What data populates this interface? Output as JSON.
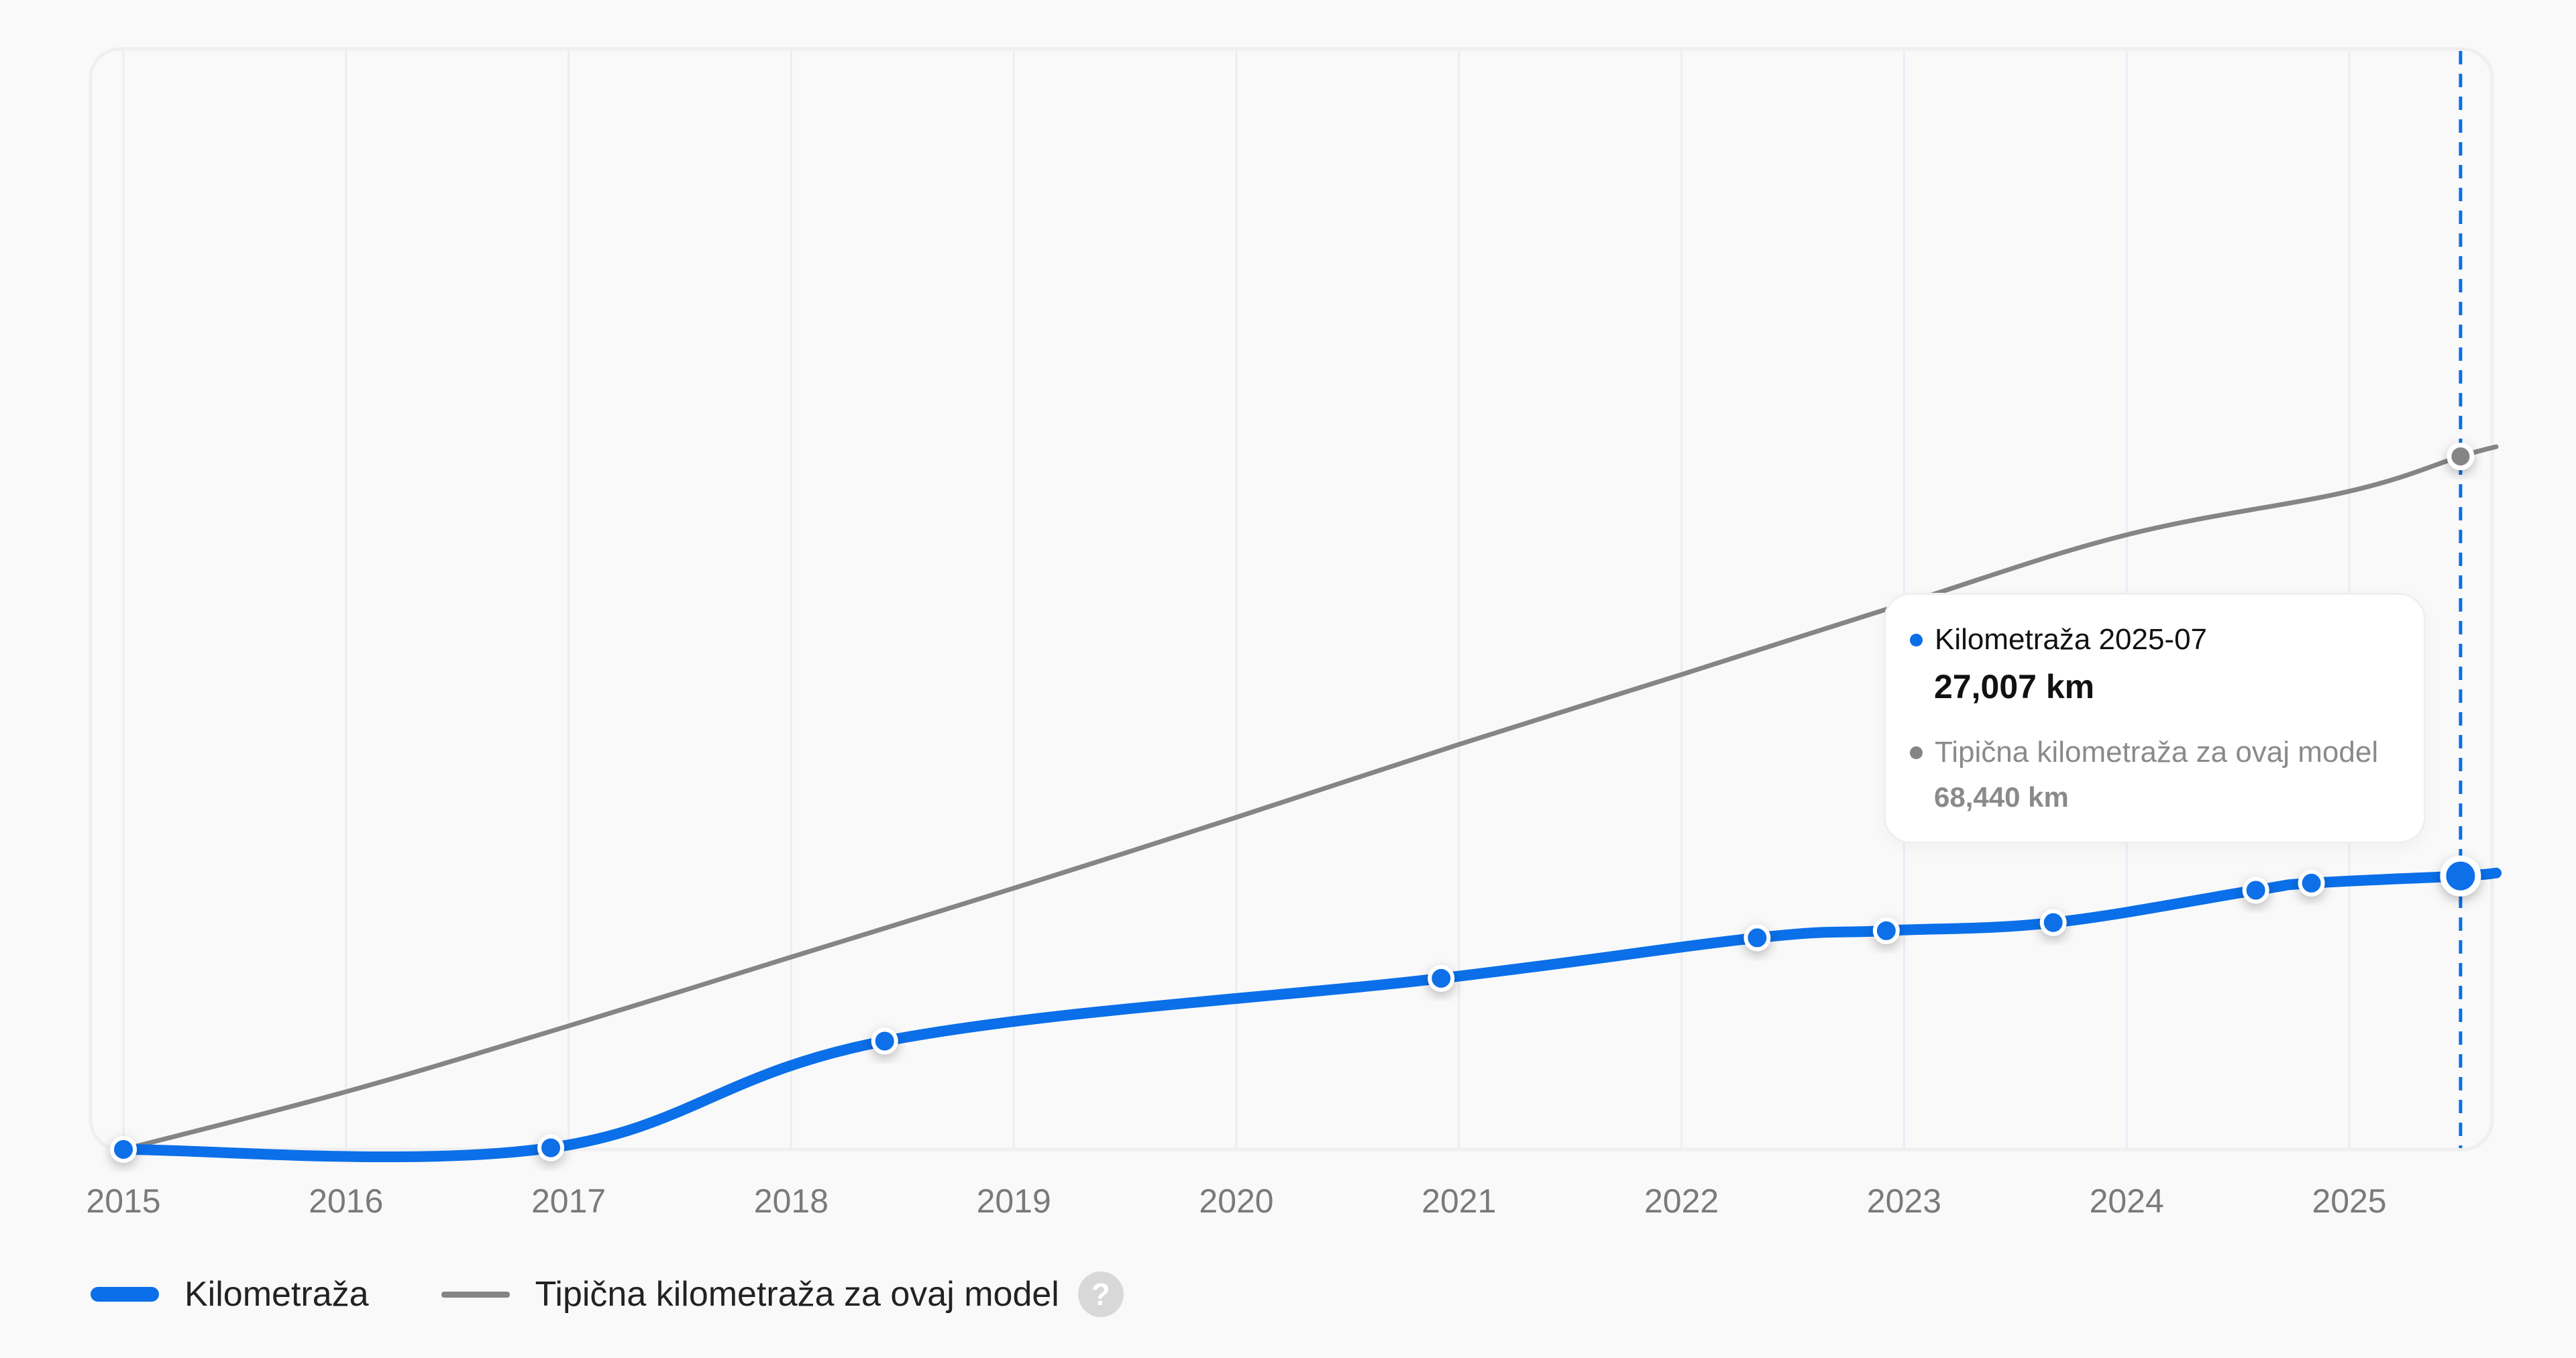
{
  "chart_data": {
    "type": "line",
    "title": "",
    "xlabel": "",
    "ylabel": "",
    "x_ticks": [
      "2015",
      "2016",
      "2017",
      "2018",
      "2019",
      "2020",
      "2021",
      "2022",
      "2023",
      "2024",
      "2025"
    ],
    "xlim": [
      2014.95,
      2025.66
    ],
    "ylim": [
      0,
      110000
    ],
    "grid": {
      "vertical": true,
      "horizontal": false
    },
    "legend_position": "bottom-left",
    "series": [
      {
        "name": "Kilometraža",
        "color": "#0a6fe8",
        "unit": "km",
        "points": [
          {
            "x": 2015.0,
            "y": 0
          },
          {
            "x": 2016.92,
            "y": 160
          },
          {
            "x": 2018.42,
            "y": 10700
          },
          {
            "x": 2020.92,
            "y": 16900
          },
          {
            "x": 2022.34,
            "y": 20900
          },
          {
            "x": 2022.92,
            "y": 21600
          },
          {
            "x": 2023.67,
            "y": 22400
          },
          {
            "x": 2024.58,
            "y": 25600
          },
          {
            "x": 2024.83,
            "y": 26300
          },
          {
            "x": 2025.5,
            "y": 27007
          }
        ],
        "extends_to": {
          "x": 2025.66,
          "y": 27300
        }
      },
      {
        "name": "Tipična kilometraža za ovaj model",
        "color": "#858585",
        "unit": "km",
        "points": [
          {
            "x": 2015.0,
            "y": 0
          },
          {
            "x": 2016.0,
            "y": 5700
          },
          {
            "x": 2017.0,
            "y": 12200
          },
          {
            "x": 2018.0,
            "y": 19000
          },
          {
            "x": 2019.0,
            "y": 25800
          },
          {
            "x": 2020.0,
            "y": 32800
          },
          {
            "x": 2021.0,
            "y": 40000
          },
          {
            "x": 2022.0,
            "y": 46900
          },
          {
            "x": 2023.0,
            "y": 53900
          },
          {
            "x": 2024.0,
            "y": 60700
          },
          {
            "x": 2025.0,
            "y": 65000
          },
          {
            "x": 2025.5,
            "y": 68440
          },
          {
            "x": 2025.66,
            "y": 69400
          }
        ]
      }
    ],
    "highlight": {
      "x": 2025.5,
      "label": "2025-07"
    }
  },
  "tooltip": {
    "series1_label": "Kilometraža 2025-07",
    "series1_value": "27,007 km",
    "series2_label": "Tipična kilometraža za ovaj model",
    "series2_value": "68,440 km"
  },
  "legend": {
    "item1_label": "Kilometraža",
    "item2_label": "Tipična kilometraža za ovaj model",
    "help_icon": "?"
  },
  "colors": {
    "primary": "#0a6fe8",
    "typical": "#858585",
    "grid": "#e8eef6",
    "panel_border": "#efefef",
    "background": "#f9f9f9"
  }
}
